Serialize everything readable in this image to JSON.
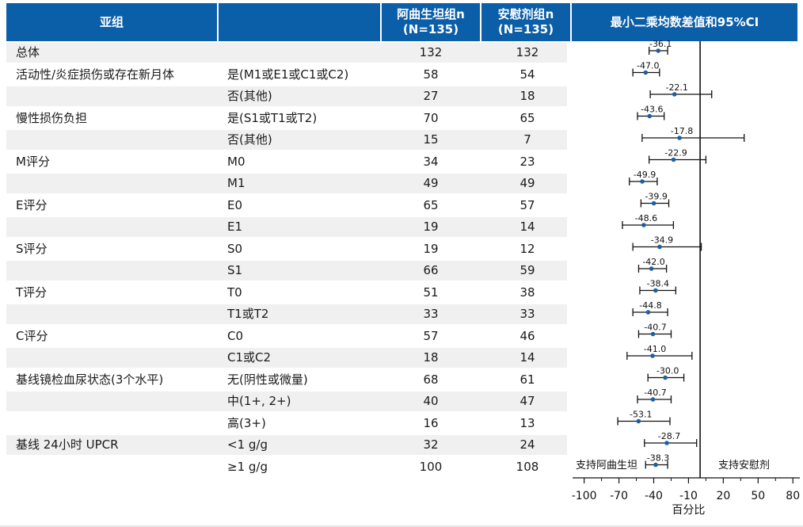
{
  "header": {
    "subgroup": "亚组",
    "col_blank": "",
    "arm1_line1": "阿曲生坦组n",
    "arm1_line2": "(N=135)",
    "arm2_line1": "安慰剂组n",
    "arm2_line2": "(N=135)",
    "effect": "最小二乘均数差值和95%CI"
  },
  "rows": [
    {
      "group": "总体",
      "level": "",
      "n1": "132",
      "n2": "132"
    },
    {
      "group": "活动性/炎症损伤或存在新月体",
      "level": "是(M1或E1或C1或C2)",
      "n1": "58",
      "n2": "54"
    },
    {
      "group": "",
      "level": "否(其他)",
      "n1": "27",
      "n2": "18"
    },
    {
      "group": "慢性损伤负担",
      "level": "是(S1或T1或T2)",
      "n1": "70",
      "n2": "65"
    },
    {
      "group": "",
      "level": "否(其他)",
      "n1": "15",
      "n2": "7"
    },
    {
      "group": "M评分",
      "level": "M0",
      "n1": "34",
      "n2": "23"
    },
    {
      "group": "",
      "level": "M1",
      "n1": "49",
      "n2": "49"
    },
    {
      "group": "E评分",
      "level": "E0",
      "n1": "65",
      "n2": "57"
    },
    {
      "group": "",
      "level": "E1",
      "n1": "19",
      "n2": "14"
    },
    {
      "group": "S评分",
      "level": "S0",
      "n1": "19",
      "n2": "12"
    },
    {
      "group": "",
      "level": "S1",
      "n1": "66",
      "n2": "59"
    },
    {
      "group": "T评分",
      "level": "T0",
      "n1": "51",
      "n2": "38"
    },
    {
      "group": "",
      "level": "T1或T2",
      "n1": "33",
      "n2": "33"
    },
    {
      "group": "C评分",
      "level": "C0",
      "n1": "57",
      "n2": "46"
    },
    {
      "group": "",
      "level": "C1或C2",
      "n1": "18",
      "n2": "14"
    },
    {
      "group": "基线镜检血尿状态(3个水平)",
      "level": "无(阴性或微量)",
      "n1": "68",
      "n2": "61"
    },
    {
      "group": "",
      "level": "中(1+, 2+)",
      "n1": "40",
      "n2": "47"
    },
    {
      "group": "",
      "level": "高(3+)",
      "n1": "16",
      "n2": "13"
    },
    {
      "group": "基线 24小时 UPCR",
      "level": "<1 g/g",
      "n1": "32",
      "n2": "24"
    },
    {
      "group": "",
      "level": "≥1 g/g",
      "n1": "100",
      "n2": "108"
    }
  ],
  "chart_data": {
    "type": "forest",
    "xlabel": "百分比",
    "xlim": [
      -110,
      86
    ],
    "xticks": [
      -100,
      -70,
      -40,
      -10,
      20,
      50,
      80
    ],
    "reference_line": 0,
    "favors_left": "支持阿曲生坦",
    "favors_right": "支持安慰剂",
    "estimates": [
      {
        "label": "总体",
        "est": -36.1,
        "lo": -44,
        "hi": -28
      },
      {
        "label": "是(M1或E1或C1或C2)",
        "est": -47.0,
        "lo": -58,
        "hi": -35
      },
      {
        "label": "否(其他)",
        "est": -22.1,
        "lo": -43,
        "hi": 10
      },
      {
        "label": "是(S1或T1或T2)",
        "est": -43.6,
        "lo": -54,
        "hi": -31
      },
      {
        "label": "否(其他)",
        "est": -17.8,
        "lo": -50,
        "hi": 38
      },
      {
        "label": "M0",
        "est": -22.9,
        "lo": -44,
        "hi": 5
      },
      {
        "label": "M1",
        "est": -49.9,
        "lo": -61,
        "hi": -37
      },
      {
        "label": "E0",
        "est": -39.9,
        "lo": -51,
        "hi": -27
      },
      {
        "label": "E1",
        "est": -48.6,
        "lo": -67,
        "hi": -23
      },
      {
        "label": "S0",
        "est": -34.9,
        "lo": -58,
        "hi": 1
      },
      {
        "label": "S1",
        "est": -42.0,
        "lo": -53,
        "hi": -29
      },
      {
        "label": "T0",
        "est": -38.4,
        "lo": -52,
        "hi": -21
      },
      {
        "label": "T1或T2",
        "est": -44.8,
        "lo": -58,
        "hi": -28
      },
      {
        "label": "C0",
        "est": -40.7,
        "lo": -53,
        "hi": -25
      },
      {
        "label": "C1或C2",
        "est": -41.0,
        "lo": -63,
        "hi": -7
      },
      {
        "label": "无(阴性或微量)",
        "est": -30.0,
        "lo": -45,
        "hi": -14
      },
      {
        "label": "中(1+, 2+)",
        "est": -40.7,
        "lo": -54,
        "hi": -25
      },
      {
        "label": "高(3+)",
        "est": -53.1,
        "lo": -71,
        "hi": -26
      },
      {
        "label": "<1 g/g",
        "est": -28.7,
        "lo": -48,
        "hi": -3
      },
      {
        "label": "≥1 g/g",
        "est": -38.3,
        "lo": -47,
        "hi": -28
      }
    ]
  },
  "colors": {
    "header_bg": "#0b5ea8",
    "row_stripe": "#f0f0f0",
    "point": "#1f5fa0",
    "whisker": "#111111"
  }
}
